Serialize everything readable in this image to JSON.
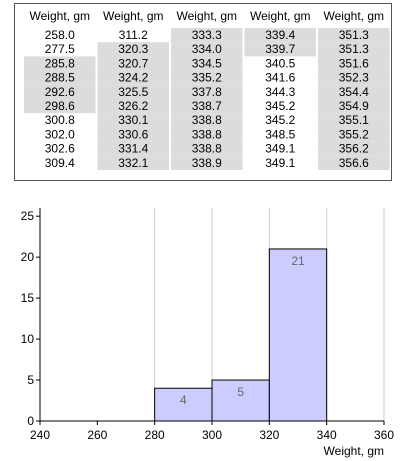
{
  "table": {
    "columns": [
      {
        "header": "Weight, gm",
        "values": [
          "258.0",
          "277.5",
          "285.8",
          "288.5",
          "292.6",
          "298.6",
          "300.8",
          "302.0",
          "302.6",
          "309.4"
        ],
        "highlighted": [
          false,
          false,
          true,
          true,
          true,
          true,
          false,
          false,
          false,
          false
        ]
      },
      {
        "header": "Weight, gm",
        "values": [
          "311.2",
          "320.3",
          "320.7",
          "324.2",
          "325.5",
          "326.2",
          "330.1",
          "330.6",
          "331.4",
          "332.1"
        ],
        "highlighted": [
          false,
          true,
          true,
          true,
          true,
          true,
          true,
          true,
          true,
          true
        ]
      },
      {
        "header": "Weight, gm",
        "values": [
          "333.3",
          "334.0",
          "334.5",
          "335.2",
          "337.8",
          "338.7",
          "338.8",
          "338.8",
          "338.8",
          "338.9"
        ],
        "highlighted": [
          true,
          true,
          true,
          true,
          true,
          true,
          true,
          true,
          true,
          true
        ]
      },
      {
        "header": "Weight, gm",
        "values": [
          "339.4",
          "339.7",
          "340.5",
          "341.6",
          "344.3",
          "345.2",
          "345.2",
          "348.5",
          "349.1",
          "349.1"
        ],
        "highlighted": [
          true,
          true,
          false,
          false,
          false,
          false,
          false,
          false,
          false,
          false
        ]
      },
      {
        "header": "Weight, gm",
        "values": [
          "351.3",
          "351.3",
          "351.6",
          "352.3",
          "354.4",
          "354.9",
          "355.1",
          "355.2",
          "356.2",
          "356.6"
        ],
        "highlighted": [
          true,
          true,
          true,
          true,
          true,
          true,
          true,
          true,
          true,
          true
        ]
      }
    ],
    "highlight_color": "#dcdcdc"
  },
  "chart_data": {
    "type": "bar",
    "xlabel": "Weight, gm",
    "ylabel": "",
    "xlim": [
      240,
      360
    ],
    "ylim": [
      0,
      26
    ],
    "x_ticks": [
      240,
      260,
      280,
      300,
      320,
      340,
      360
    ],
    "y_ticks": [
      0,
      5,
      10,
      15,
      20,
      25
    ],
    "bins": [
      {
        "start": 280,
        "end": 300,
        "count": 4,
        "label": "4"
      },
      {
        "start": 300,
        "end": 320,
        "count": 5,
        "label": "5"
      },
      {
        "start": 320,
        "end": 340,
        "count": 21,
        "label": "21"
      }
    ],
    "vertical_gridlines": [
      280,
      300,
      320,
      340,
      360
    ],
    "bar_color": "#ccccff",
    "grid_color": "#cccccc"
  }
}
